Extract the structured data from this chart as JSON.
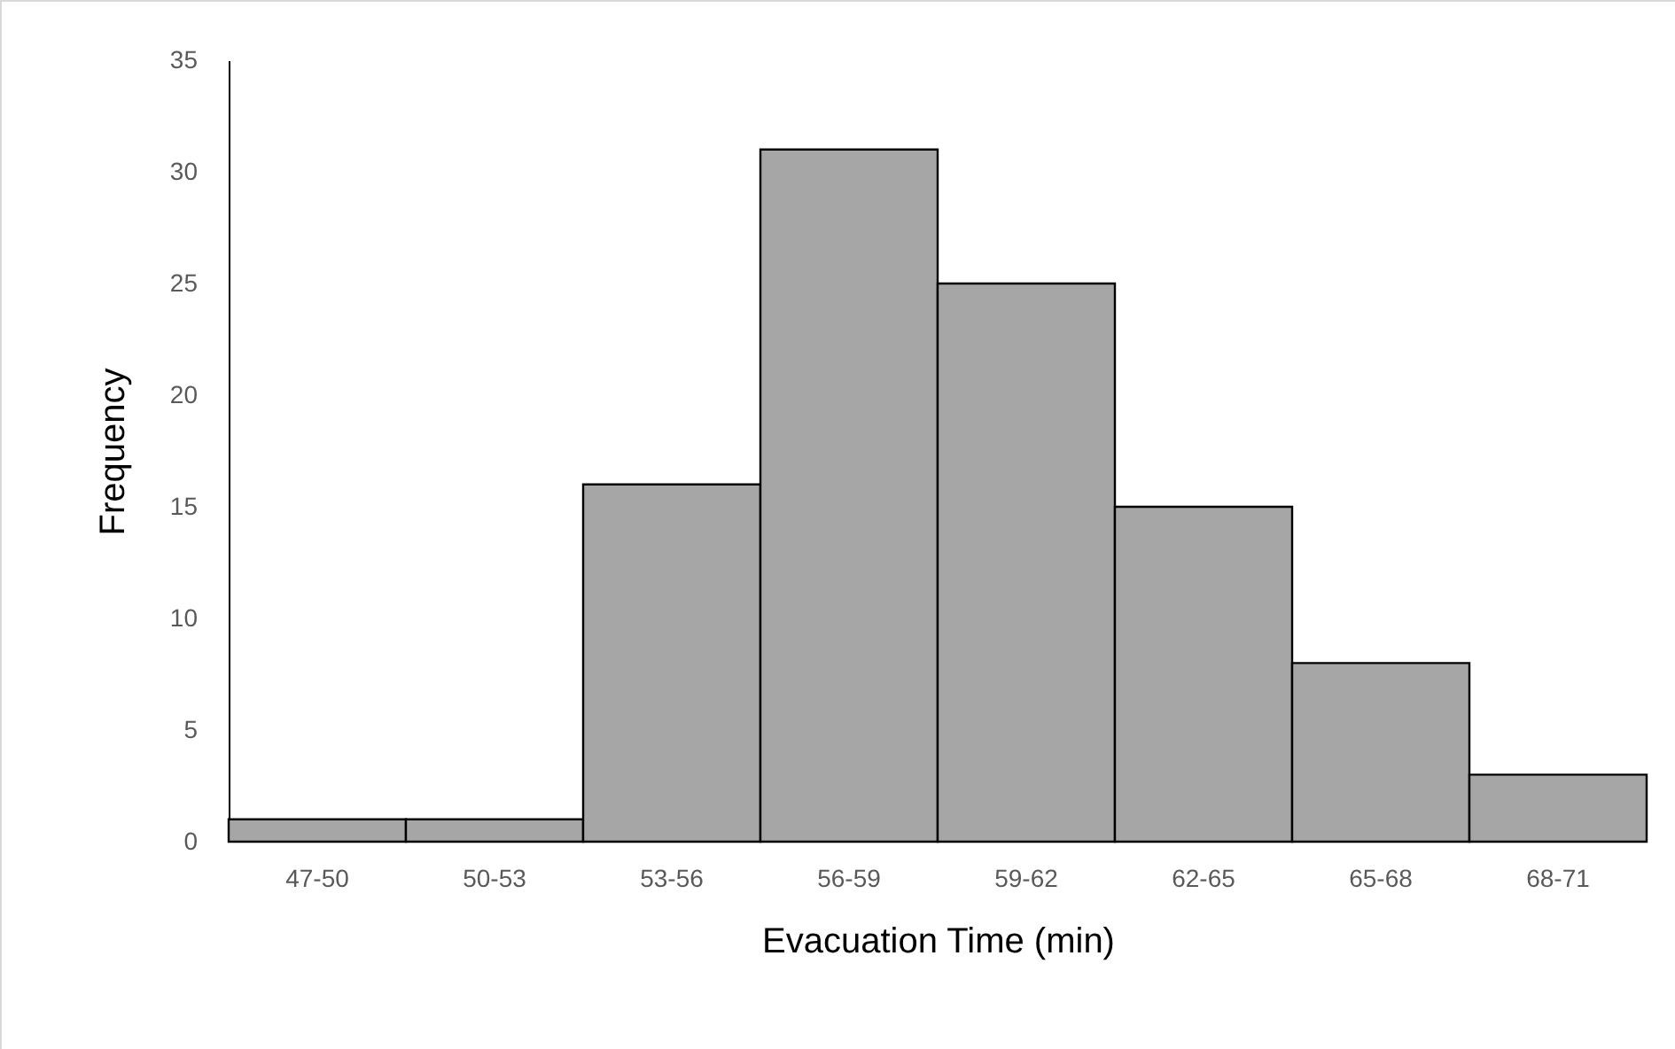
{
  "chart_data": {
    "type": "bar",
    "xlabel": "Evacuation Time (min)",
    "ylabel": "Frequency",
    "categories": [
      "47-50",
      "50-53",
      "53-56",
      "56-59",
      "59-62",
      "62-65",
      "65-68",
      "68-71"
    ],
    "values": [
      1,
      1,
      16,
      31,
      25,
      15,
      8,
      3
    ],
    "color": "#a6a6a6",
    "ylim": [
      0,
      35
    ],
    "yticks": [
      0,
      5,
      10,
      15,
      20,
      25,
      30,
      35
    ]
  }
}
